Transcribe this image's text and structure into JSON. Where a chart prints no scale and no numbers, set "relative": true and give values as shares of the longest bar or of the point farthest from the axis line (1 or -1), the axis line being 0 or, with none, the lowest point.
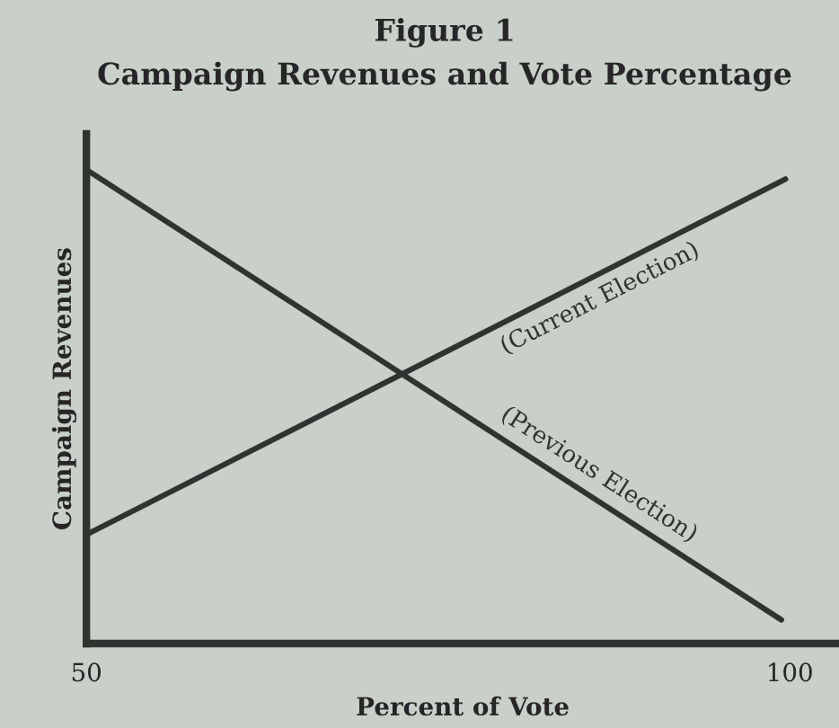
{
  "chart_data": {
    "type": "line",
    "title": "Figure 1",
    "subtitle": "Campaign Revenues and Vote Percentage",
    "xlabel": "Percent of Vote",
    "ylabel": "Campaign Revenues",
    "relative": true,
    "xlim": [
      50,
      103.5
    ],
    "xticks": [
      50,
      100
    ],
    "legend": false,
    "marker": "none",
    "line_style": "solid",
    "series": [
      {
        "name": "(Current Election)",
        "color": "#2e3430",
        "x": [
          50,
          99.7
        ],
        "values": [
          0.23,
          0.98
        ]
      },
      {
        "name": "(Previous Election)",
        "color": "#2e3430",
        "x": [
          50,
          99.4
        ],
        "values": [
          1,
          0.05
        ]
      }
    ]
  }
}
